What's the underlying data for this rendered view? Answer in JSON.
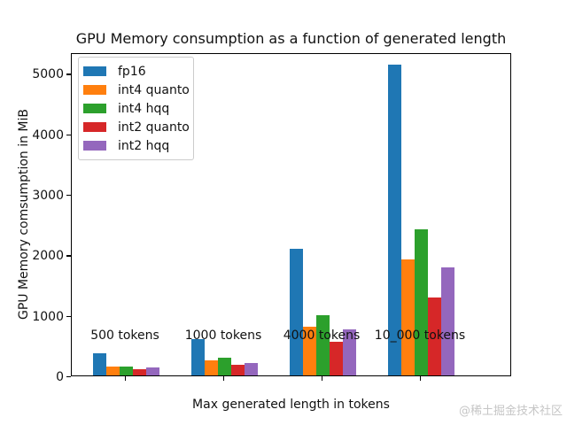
{
  "watermark": "@稀土掘金技术社区",
  "chart_data": {
    "type": "bar",
    "title": "GPU Memory consumption as a function of generated length",
    "xlabel": "Max generated length in tokens",
    "ylabel": "GPU Memory comsumption in MiB",
    "categories": [
      "500 tokens",
      "1000 tokens",
      "4000 tokens",
      "10_000 tokens"
    ],
    "series": [
      {
        "name": "fp16",
        "color": "#1f77b4",
        "values": [
          370,
          600,
          2100,
          5130
        ]
      },
      {
        "name": "int4 quanto",
        "color": "#ff7f0e",
        "values": [
          150,
          245,
          805,
          1920
        ]
      },
      {
        "name": "int4 hqq",
        "color": "#2ca02c",
        "values": [
          150,
          290,
          990,
          2410
        ]
      },
      {
        "name": "int2 quanto",
        "color": "#d62728",
        "values": [
          100,
          170,
          550,
          1290
        ]
      },
      {
        "name": "int2 hqq",
        "color": "#9467bd",
        "values": [
          130,
          210,
          760,
          1790
        ]
      }
    ],
    "yticks": [
      0,
      1000,
      2000,
      3000,
      4000,
      5000
    ],
    "ylim": [
      0,
      5340
    ],
    "grid": false,
    "legend_position": "upper left"
  }
}
